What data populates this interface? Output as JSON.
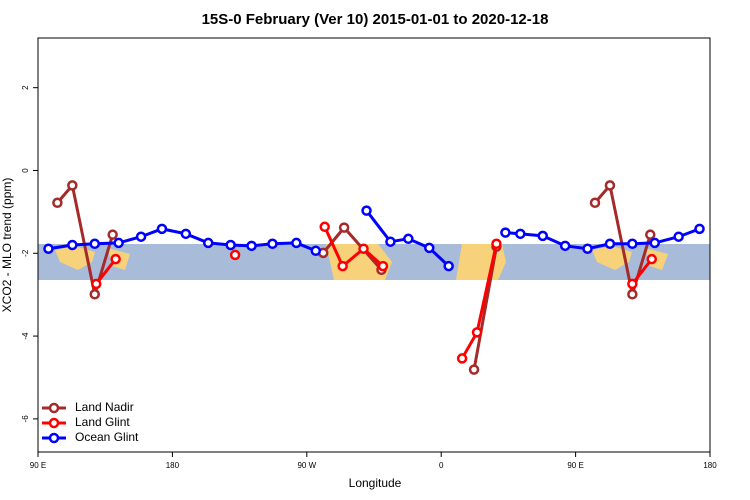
{
  "chart_data": {
    "type": "line",
    "title": "15S-0 February (Ver 10)   2015-01-01 to 2020-12-18",
    "x_label": "Longitude",
    "y_label": "XCO2 - MLO trend (ppm)",
    "xlim": [
      90,
      540
    ],
    "xticks": [
      {
        "value": 90,
        "label": "90 E"
      },
      180,
      {
        "value": 270,
        "label": "90 W"
      },
      {
        "value": 360,
        "label": "0"
      },
      {
        "value": 450,
        "label": "90 E"
      },
      {
        "value": 540,
        "label": "180"
      }
    ],
    "ylim": [
      -6.8,
      3.2
    ],
    "yticks": [
      2,
      0,
      -2,
      -4,
      -6
    ],
    "grid": false,
    "legend": "bottom-left",
    "series": [
      {
        "name": "Land Nadir",
        "color": "#a52a2a",
        "x": [
          103,
          113,
          128,
          140,
          null,
          281,
          295,
          320,
          null,
          382,
          397,
          null,
          463,
          473,
          488,
          500
        ],
        "values": [
          -0.78,
          -0.36,
          -2.99,
          -1.55,
          null,
          -1.99,
          -1.38,
          -2.4,
          null,
          -4.81,
          -1.84,
          null,
          -0.78,
          -0.36,
          -2.99,
          -1.55
        ]
      },
      {
        "name": "Land Glint",
        "color": "#ff0000",
        "x": [
          129,
          142,
          null,
          222,
          null,
          282,
          294,
          308,
          321,
          null,
          374,
          384,
          397,
          null,
          488,
          501
        ],
        "values": [
          -2.74,
          -2.14,
          null,
          -2.04,
          null,
          -1.36,
          -2.31,
          -1.89,
          -2.31,
          null,
          -4.54,
          -3.91,
          -1.77,
          null,
          -2.74,
          -2.14
        ]
      },
      {
        "name": "Ocean Glint",
        "color": "#0000ff",
        "x": [
          97,
          113,
          128,
          144,
          159,
          173,
          189,
          204,
          219,
          233,
          247,
          263,
          276,
          null,
          310,
          326,
          338,
          352,
          365,
          null,
          403,
          413,
          428,
          443,
          458,
          473,
          488,
          503,
          519,
          533
        ],
        "values": [
          -1.89,
          -1.8,
          -1.77,
          -1.75,
          -1.6,
          -1.41,
          -1.53,
          -1.75,
          -1.8,
          -1.82,
          -1.77,
          -1.75,
          -1.94,
          null,
          -0.97,
          -1.72,
          -1.65,
          -1.87,
          -2.31,
          null,
          -1.5,
          -1.53,
          -1.58,
          -1.82,
          -1.89,
          -1.77,
          -1.77,
          -1.75,
          -1.6,
          -1.41
        ]
      }
    ]
  }
}
